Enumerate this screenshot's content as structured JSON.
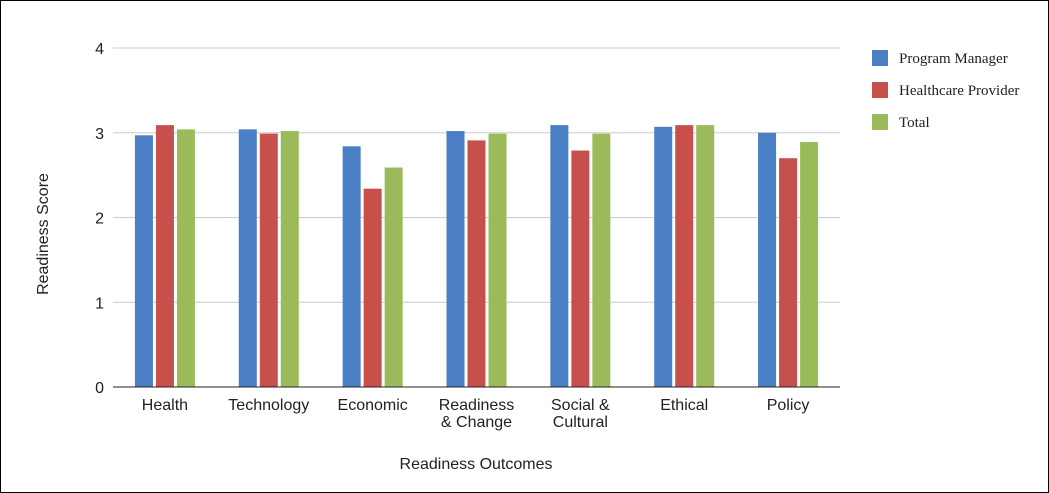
{
  "chart_data": {
    "type": "bar",
    "title": "",
    "xlabel": "Readiness Outcomes",
    "ylabel": "Readiness Score",
    "ylim": [
      0,
      4
    ],
    "yticks": [
      0,
      1,
      2,
      3,
      4
    ],
    "grid": true,
    "legend_position": "right",
    "categories": [
      [
        "Health"
      ],
      [
        "Technology"
      ],
      [
        "Economic"
      ],
      [
        "Readiness",
        "& Change"
      ],
      [
        "Social &",
        "Cultural"
      ],
      [
        "Ethical"
      ],
      [
        "Policy"
      ]
    ],
    "series": [
      {
        "name": "Program Manager",
        "color": "#4a7ec5",
        "values": [
          2.97,
          3.04,
          2.84,
          3.02,
          3.09,
          3.07,
          3.0
        ]
      },
      {
        "name": "Healthcare Provider",
        "color": "#c8504c",
        "values": [
          3.09,
          2.99,
          2.34,
          2.91,
          2.79,
          3.09,
          2.7
        ]
      },
      {
        "name": "Total",
        "color": "#9bbb5a",
        "values": [
          3.04,
          3.02,
          2.59,
          2.99,
          2.99,
          3.09,
          2.89
        ]
      }
    ]
  }
}
